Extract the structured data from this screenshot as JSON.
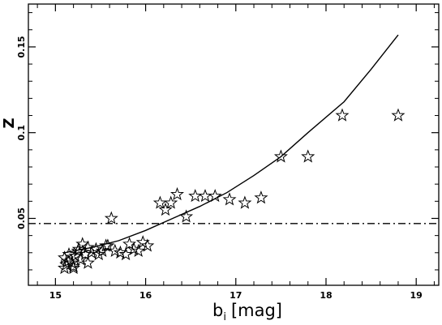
{
  "chart_data": {
    "type": "scatter",
    "title": "",
    "xlabel_main": "b",
    "xlabel_sub": "i",
    "xlabel_unit": "[mag]",
    "ylabel": "Z",
    "xlim": [
      14.7,
      19.25
    ],
    "ylim": [
      0.011,
      0.175
    ],
    "x_ticks": [
      15,
      16,
      17,
      18,
      19
    ],
    "x_tick_labels": [
      "15",
      "16",
      "17",
      "18",
      "19"
    ],
    "y_ticks": [
      0.05,
      0.1,
      0.15
    ],
    "y_tick_labels": [
      "0.05",
      "0.1",
      "0.15"
    ],
    "grid": false,
    "series": [
      {
        "marker": "star-open",
        "x": [
          15.1,
          15.12,
          15.15,
          15.18,
          15.2,
          15.22,
          15.25,
          15.28,
          15.3,
          15.33,
          15.36,
          15.4,
          15.45,
          15.48,
          15.52,
          15.58,
          15.62,
          15.66,
          15.72,
          15.78,
          15.82,
          15.87,
          15.92,
          15.97,
          16.02,
          15.1,
          15.14,
          15.2,
          15.36,
          15.26,
          15.56,
          16.16,
          16.22,
          16.28,
          16.35,
          16.45,
          16.55,
          16.66,
          16.77,
          16.93,
          17.1,
          17.28,
          17.5,
          17.8,
          18.18,
          18.8
        ],
        "y": [
          0.027,
          0.023,
          0.029,
          0.024,
          0.022,
          0.028,
          0.031,
          0.026,
          0.035,
          0.029,
          0.033,
          0.03,
          0.032,
          0.029,
          0.031,
          0.034,
          0.05,
          0.031,
          0.03,
          0.029,
          0.035,
          0.032,
          0.031,
          0.036,
          0.034,
          0.021,
          0.025,
          0.021,
          0.024,
          0.032,
          0.034,
          0.059,
          0.055,
          0.059,
          0.064,
          0.051,
          0.063,
          0.063,
          0.063,
          0.061,
          0.059,
          0.062,
          0.086,
          0.086,
          0.11,
          0.11
        ]
      },
      {
        "marker": "line",
        "x": [
          15.1,
          15.4,
          15.7,
          16.0,
          16.3,
          16.6,
          16.9,
          17.2,
          17.5,
          17.8,
          18.2,
          18.5,
          18.8
        ],
        "y": [
          0.03,
          0.033,
          0.037,
          0.043,
          0.05,
          0.057,
          0.065,
          0.075,
          0.086,
          0.1,
          0.118,
          0.137,
          0.157
        ]
      }
    ],
    "hline": {
      "y": 0.047,
      "style": "dash-dot"
    }
  }
}
